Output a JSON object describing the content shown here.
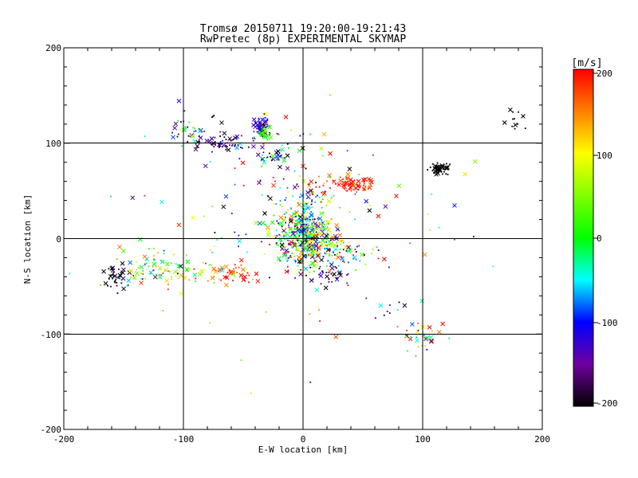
{
  "chart_data": {
    "type": "scatter",
    "title": "Tromsø 20150711 19:20:00-19:21:43",
    "subtitle": "RwPretec (8p) EXPERIMENTAL SKYMAP",
    "xlabel": "E-W location [km]",
    "ylabel": "N-S location [km]",
    "xlim": [
      -200,
      200
    ],
    "ylim": [
      -200,
      200
    ],
    "x_ticks": [
      "-200",
      "-100",
      "0",
      "100",
      "200"
    ],
    "y_ticks": [
      "-200",
      "-100",
      "0",
      "100",
      "200"
    ],
    "grid": true,
    "colorbar": {
      "unit": "[m/s]",
      "min": -200,
      "max": 200,
      "ticks": [
        "200",
        "100",
        "0",
        "-100",
        "-200"
      ]
    },
    "clusters": [
      {
        "cx": 0,
        "cy": 0,
        "sx": 12,
        "sy": 14,
        "n": 420,
        "v": 0,
        "vs": 120
      },
      {
        "cx": -2,
        "cy": 20,
        "sx": 14,
        "sy": 22,
        "n": 120,
        "v": -40,
        "vs": 120
      },
      {
        "cx": 40,
        "cy": 56,
        "sx": 8,
        "sy": 4,
        "n": 70,
        "v": 195,
        "vs": 15
      },
      {
        "cx": 20,
        "cy": 55,
        "sx": 14,
        "sy": 6,
        "n": 25,
        "v": 170,
        "vs": 40
      },
      {
        "cx": 115,
        "cy": 73,
        "sx": 4,
        "sy": 3,
        "n": 45,
        "v": -210,
        "vs": 5
      },
      {
        "cx": -35,
        "cy": 118,
        "sx": 4,
        "sy": 5,
        "n": 55,
        "v": -150,
        "vs": 40
      },
      {
        "cx": -32,
        "cy": 110,
        "sx": 3,
        "sy": 3,
        "n": 25,
        "v": 20,
        "vs": 25
      },
      {
        "cx": -65,
        "cy": 100,
        "sx": 14,
        "sy": 5,
        "n": 65,
        "v": -170,
        "vs": 50
      },
      {
        "cx": -95,
        "cy": 115,
        "sx": 12,
        "sy": 10,
        "n": 35,
        "v": -130,
        "vs": 90
      },
      {
        "cx": -25,
        "cy": 88,
        "sx": 10,
        "sy": 6,
        "n": 35,
        "v": -110,
        "vs": 90
      },
      {
        "cx": -155,
        "cy": -40,
        "sx": 6,
        "sy": 6,
        "n": 45,
        "v": -200,
        "vs": 25
      },
      {
        "cx": -120,
        "cy": -30,
        "sx": 22,
        "sy": 10,
        "n": 110,
        "v": 40,
        "vs": 110
      },
      {
        "cx": -60,
        "cy": -38,
        "sx": 12,
        "sy": 6,
        "n": 50,
        "v": 175,
        "vs": 40
      },
      {
        "cx": 20,
        "cy": -38,
        "sx": 8,
        "sy": 5,
        "n": 35,
        "v": -170,
        "vs": 50
      },
      {
        "cx": 100,
        "cy": -103,
        "sx": 6,
        "sy": 7,
        "n": 35,
        "v": 0,
        "vs": 130
      },
      {
        "cx": 35,
        "cy": -15,
        "sx": 14,
        "sy": 10,
        "n": 60,
        "v": 40,
        "vs": 150
      },
      {
        "cx": 178,
        "cy": 125,
        "sx": 6,
        "sy": 6,
        "n": 12,
        "v": -210,
        "vs": 5
      },
      {
        "cx": 0,
        "cy": 60,
        "sx": 30,
        "sy": 45,
        "n": 60,
        "v": 0,
        "vs": 150
      },
      {
        "cx": 0,
        "cy": 0,
        "sx": 80,
        "sy": 60,
        "n": 90,
        "v": 0,
        "vs": 150
      },
      {
        "cx": 75,
        "cy": -72,
        "sx": 10,
        "sy": 8,
        "n": 10,
        "v": -150,
        "vs": 60
      }
    ]
  }
}
